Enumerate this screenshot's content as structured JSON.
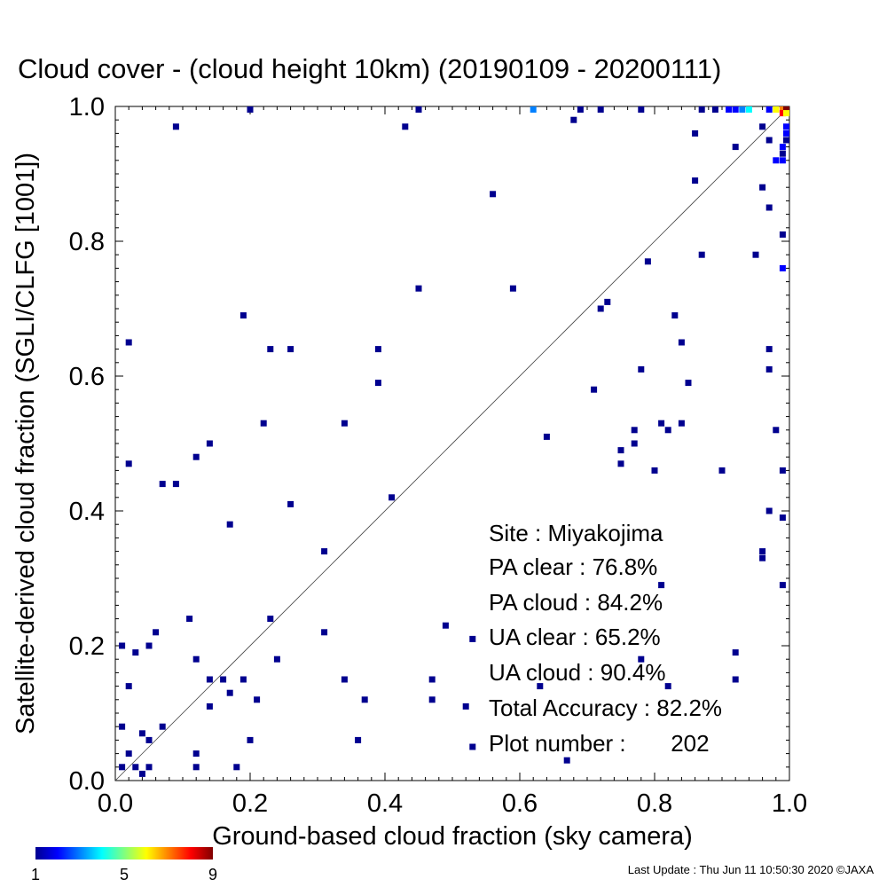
{
  "chart_data": {
    "type": "heatmap",
    "title": "Cloud cover - (cloud height 10km)  (20190109 - 20200111)",
    "xlabel": "Ground-based cloud fraction (sky camera)",
    "ylabel": "Satellite-derived cloud fraction (SGLI/CLFG [1001])",
    "xlim": [
      0.0,
      1.0
    ],
    "ylim": [
      0.0,
      1.0
    ],
    "xticks": [
      "0.0",
      "0.2",
      "0.4",
      "0.6",
      "0.8",
      "1.0"
    ],
    "yticks": [
      "0.0",
      "0.2",
      "0.4",
      "0.6",
      "0.8",
      "1.0"
    ],
    "reference_line": "y = x",
    "colorbar": {
      "min": 1,
      "max": 9,
      "ticks": [
        "1",
        "5",
        "9"
      ]
    },
    "stats": {
      "site": "Site : Miyakojima",
      "pa_clear": "PA clear :  76.8%",
      "pa_cloud": "PA cloud :  84.2%",
      "ua_clear": "UA clear :  65.2%",
      "ua_cloud": "UA cloud :  90.4%",
      "total_accuracy": "Total Accuracy :  82.2%",
      "plot_number": "Plot number :       202"
    },
    "points": [
      [
        0.01,
        0.02,
        1
      ],
      [
        0.02,
        0.04,
        1
      ],
      [
        0.03,
        0.02,
        1
      ],
      [
        0.04,
        0.01,
        1
      ],
      [
        0.05,
        0.02,
        1
      ],
      [
        0.01,
        0.08,
        1
      ],
      [
        0.04,
        0.07,
        1
      ],
      [
        0.05,
        0.06,
        1
      ],
      [
        0.07,
        0.08,
        1
      ],
      [
        0.12,
        0.04,
        1
      ],
      [
        0.12,
        0.02,
        1
      ],
      [
        0.18,
        0.02,
        1
      ],
      [
        0.2,
        0.06,
        1
      ],
      [
        0.01,
        0.2,
        1
      ],
      [
        0.03,
        0.19,
        1
      ],
      [
        0.05,
        0.2,
        1
      ],
      [
        0.06,
        0.22,
        1
      ],
      [
        0.02,
        0.14,
        1
      ],
      [
        0.11,
        0.24,
        1
      ],
      [
        0.12,
        0.18,
        1
      ],
      [
        0.14,
        0.15,
        1
      ],
      [
        0.14,
        0.11,
        1
      ],
      [
        0.16,
        0.15,
        1
      ],
      [
        0.17,
        0.13,
        1
      ],
      [
        0.19,
        0.15,
        1
      ],
      [
        0.21,
        0.12,
        1
      ],
      [
        0.23,
        0.24,
        1
      ],
      [
        0.24,
        0.18,
        1
      ],
      [
        0.31,
        0.22,
        1
      ],
      [
        0.34,
        0.15,
        1
      ],
      [
        0.36,
        0.06,
        1
      ],
      [
        0.37,
        0.12,
        1
      ],
      [
        0.47,
        0.15,
        1
      ],
      [
        0.47,
        0.12,
        1
      ],
      [
        0.49,
        0.23,
        1
      ],
      [
        0.52,
        0.11,
        1
      ],
      [
        0.53,
        0.21,
        1
      ],
      [
        0.53,
        0.05,
        1
      ],
      [
        0.63,
        0.14,
        1
      ],
      [
        0.67,
        0.03,
        1
      ],
      [
        0.78,
        0.18,
        1
      ],
      [
        0.81,
        0.29,
        1
      ],
      [
        0.82,
        0.14,
        1
      ],
      [
        0.92,
        0.15,
        1
      ],
      [
        0.92,
        0.19,
        1
      ],
      [
        0.02,
        0.47,
        1
      ],
      [
        0.02,
        0.65,
        1
      ],
      [
        0.07,
        0.44,
        1
      ],
      [
        0.09,
        0.44,
        1
      ],
      [
        0.12,
        0.48,
        1
      ],
      [
        0.14,
        0.5,
        1
      ],
      [
        0.17,
        0.38,
        1
      ],
      [
        0.19,
        0.69,
        1
      ],
      [
        0.22,
        0.53,
        1
      ],
      [
        0.23,
        0.64,
        1
      ],
      [
        0.26,
        0.64,
        1
      ],
      [
        0.26,
        0.41,
        1
      ],
      [
        0.31,
        0.34,
        1
      ],
      [
        0.34,
        0.53,
        1
      ],
      [
        0.39,
        0.64,
        1
      ],
      [
        0.39,
        0.59,
        1
      ],
      [
        0.41,
        0.42,
        1
      ],
      [
        0.45,
        0.73,
        1
      ],
      [
        0.56,
        0.87,
        1
      ],
      [
        0.59,
        0.73,
        1
      ],
      [
        0.09,
        0.97,
        1
      ],
      [
        0.2,
        1.0,
        1
      ],
      [
        0.43,
        0.97,
        1
      ],
      [
        0.45,
        1.0,
        1
      ],
      [
        0.62,
        1.0,
        3
      ],
      [
        0.68,
        0.98,
        1
      ],
      [
        0.69,
        1.0,
        1
      ],
      [
        0.72,
        1.0,
        1
      ],
      [
        0.78,
        1.0,
        1
      ],
      [
        0.87,
        1.0,
        1
      ],
      [
        0.89,
        1.0,
        1
      ],
      [
        0.91,
        1.0,
        2
      ],
      [
        0.92,
        1.0,
        2
      ],
      [
        0.93,
        1.0,
        3
      ],
      [
        0.94,
        1.0,
        4
      ],
      [
        0.97,
        1.0,
        2
      ],
      [
        0.98,
        1.0,
        6
      ],
      [
        0.99,
        1.0,
        7
      ],
      [
        1.0,
        1.0,
        9
      ],
      [
        0.99,
        0.99,
        8
      ],
      [
        1.0,
        0.99,
        6
      ],
      [
        0.64,
        0.51,
        1
      ],
      [
        0.71,
        0.58,
        1
      ],
      [
        0.72,
        0.7,
        1
      ],
      [
        0.73,
        0.71,
        1
      ],
      [
        0.75,
        0.49,
        1
      ],
      [
        0.75,
        0.47,
        1
      ],
      [
        0.77,
        0.52,
        1
      ],
      [
        0.77,
        0.5,
        1
      ],
      [
        0.78,
        0.61,
        1
      ],
      [
        0.79,
        0.77,
        1
      ],
      [
        0.8,
        0.46,
        1
      ],
      [
        0.81,
        0.53,
        1
      ],
      [
        0.82,
        0.52,
        1
      ],
      [
        0.83,
        0.69,
        1
      ],
      [
        0.84,
        0.65,
        1
      ],
      [
        0.84,
        0.53,
        1
      ],
      [
        0.85,
        0.59,
        1
      ],
      [
        0.86,
        0.89,
        1
      ],
      [
        0.86,
        0.96,
        1
      ],
      [
        0.87,
        0.78,
        1
      ],
      [
        0.9,
        0.46,
        1
      ],
      [
        0.92,
        0.94,
        1
      ],
      [
        0.95,
        0.78,
        1
      ],
      [
        0.96,
        0.88,
        1
      ],
      [
        0.96,
        0.97,
        1
      ],
      [
        0.96,
        0.34,
        1
      ],
      [
        0.96,
        0.33,
        1
      ],
      [
        0.97,
        0.85,
        1
      ],
      [
        0.97,
        0.95,
        1
      ],
      [
        0.97,
        0.64,
        1
      ],
      [
        0.97,
        0.61,
        1
      ],
      [
        0.97,
        0.4,
        1
      ],
      [
        0.98,
        0.52,
        1
      ],
      [
        0.98,
        0.92,
        2
      ],
      [
        0.99,
        0.92,
        2
      ],
      [
        0.99,
        0.94,
        2
      ],
      [
        0.99,
        0.93,
        1
      ],
      [
        0.99,
        0.81,
        1
      ],
      [
        0.99,
        0.76,
        2
      ],
      [
        0.99,
        0.46,
        1
      ],
      [
        0.99,
        0.39,
        1
      ],
      [
        0.99,
        0.29,
        1
      ],
      [
        1.0,
        0.97,
        2
      ],
      [
        1.0,
        0.96,
        2
      ],
      [
        1.0,
        0.95,
        1
      ]
    ]
  },
  "footer": {
    "last_update": "Last Update : Thu Jun 11 10:50:30 2020  ©JAXA"
  }
}
